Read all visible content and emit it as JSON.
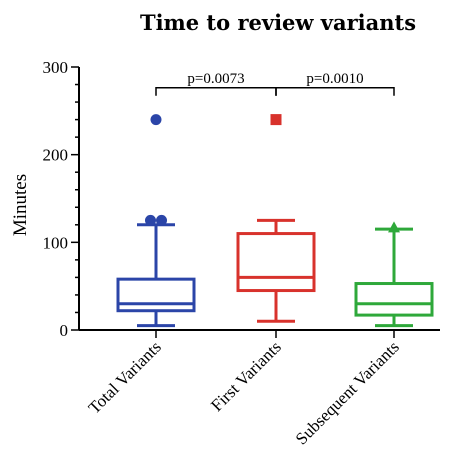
{
  "chart_data": {
    "type": "box",
    "title": "Time to review variants",
    "xlabel": "",
    "ylabel": "Minutes",
    "ylim": [
      0,
      300
    ],
    "yticks": [
      "0",
      "100",
      "200",
      "300"
    ],
    "ytick_values": [
      0,
      100,
      200,
      300
    ],
    "categories": [
      "Total Variants",
      "First Variants",
      "Subsequent  Variants"
    ],
    "series": [
      {
        "category": "Total Variants",
        "color": "#2b45a8",
        "whisker_low": 5,
        "q1": 22,
        "median": 30,
        "q3": 58,
        "whisker_high": 120,
        "outliers": [
          125,
          125,
          240
        ],
        "marker": "circle"
      },
      {
        "category": "First Variants",
        "color": "#d8322c",
        "whisker_low": 10,
        "q1": 45,
        "median": 60,
        "q3": 110,
        "whisker_high": 125,
        "outliers": [
          240
        ],
        "marker": "square"
      },
      {
        "category": "Subsequent  Variants",
        "color": "#2ea83a",
        "whisker_low": 5,
        "q1": 17,
        "median": 30,
        "q3": 53,
        "whisker_high": 115,
        "outliers": [
          117
        ],
        "marker": "triangle"
      }
    ],
    "annotations": [
      {
        "text": "p=0.0073",
        "from": 0,
        "to": 1,
        "y": 290
      },
      {
        "text": "p=0.0010",
        "from": 1,
        "to": 2,
        "y": 290
      }
    ],
    "grid": false,
    "legend": "none"
  }
}
